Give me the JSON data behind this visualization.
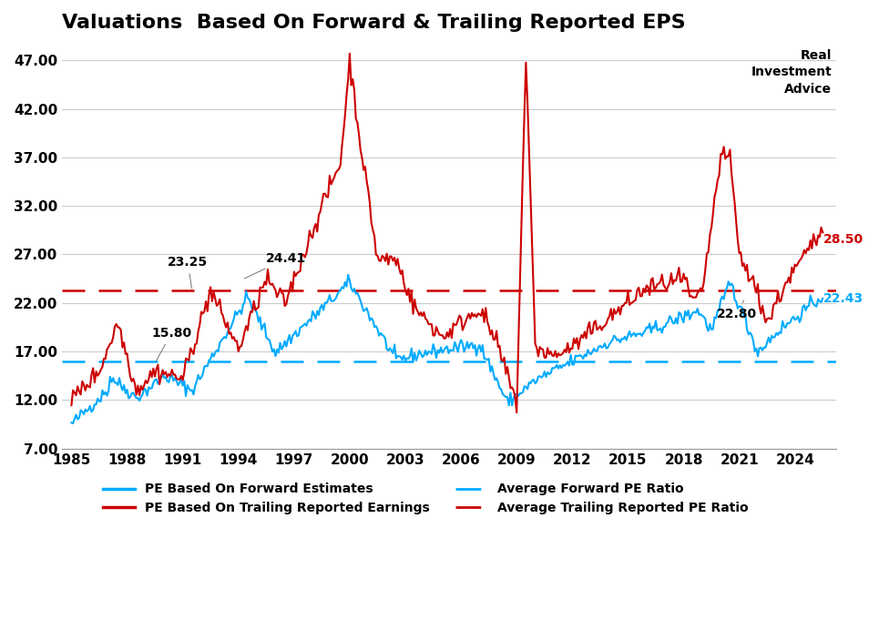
{
  "title": "Valuations  Based On Forward & Trailing Reported EPS",
  "ylim": [
    7.0,
    49.0
  ],
  "yticks": [
    7.0,
    12.0,
    17.0,
    22.0,
    27.0,
    32.0,
    37.0,
    42.0,
    47.0
  ],
  "xticks": [
    1985,
    1988,
    1991,
    1994,
    1997,
    2000,
    2003,
    2006,
    2009,
    2012,
    2015,
    2018,
    2021,
    2024
  ],
  "avg_forward": 16.0,
  "avg_trailing": 23.3,
  "forward_color": "#00AAFF",
  "trailing_color": "#CC0000",
  "avg_forward_color": "#00AAFF",
  "avg_trailing_color": "#CC0000",
  "background_color": "#FFFFFF",
  "title_fontsize": 16,
  "tick_fontsize": 11
}
